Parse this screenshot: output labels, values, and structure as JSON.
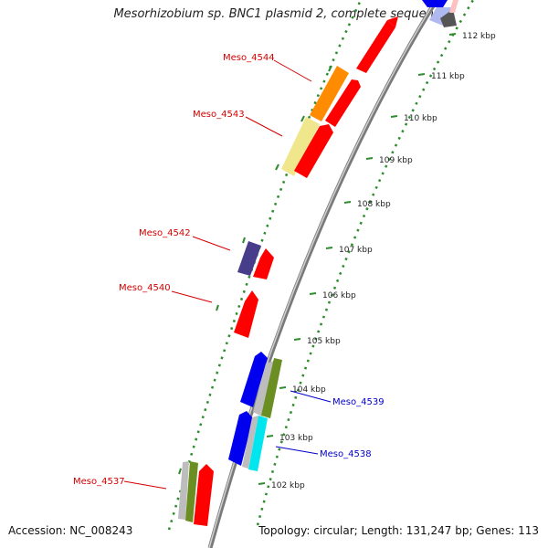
{
  "title": "Mesorhizobium sp. BNC1 plasmid 2, complete sequence",
  "footer": {
    "accession_label": "Accession:",
    "accession": "NC_008243",
    "topology_label": "Topology:",
    "topology": "circular",
    "length_label": "Length:",
    "length": "131,247 bp",
    "genes_label": "Genes:",
    "genes": "113"
  },
  "ticks": [
    "102 kbp",
    "103 kbp",
    "104 kbp",
    "105 kbp",
    "106 kbp",
    "107 kbp",
    "108 kbp",
    "109 kbp",
    "110 kbp",
    "111 kbp",
    "112 kbp"
  ],
  "gene_labels": [
    {
      "name": "Meso_4544",
      "color": "#d40000"
    },
    {
      "name": "Meso_4543",
      "color": "#d40000"
    },
    {
      "name": "Meso_4542",
      "color": "#d40000"
    },
    {
      "name": "Meso_4540",
      "color": "#d40000"
    },
    {
      "name": "Meso_4539",
      "color": "#0000cc"
    },
    {
      "name": "Meso_4538",
      "color": "#0000cc"
    },
    {
      "name": "Meso_4537",
      "color": "#d40000"
    }
  ],
  "colors": {
    "backbone": "#8a8a8a",
    "dots": "#2e8b2e",
    "red": "#ff0000",
    "blue": "#0000ee",
    "orange": "#ff8c00",
    "khaki": "#f0e68c",
    "purple": "#483d8b",
    "olive": "#6b8e23",
    "gray": "#bdbdbd",
    "cyan": "#00e5ee",
    "darkgray": "#555555"
  }
}
